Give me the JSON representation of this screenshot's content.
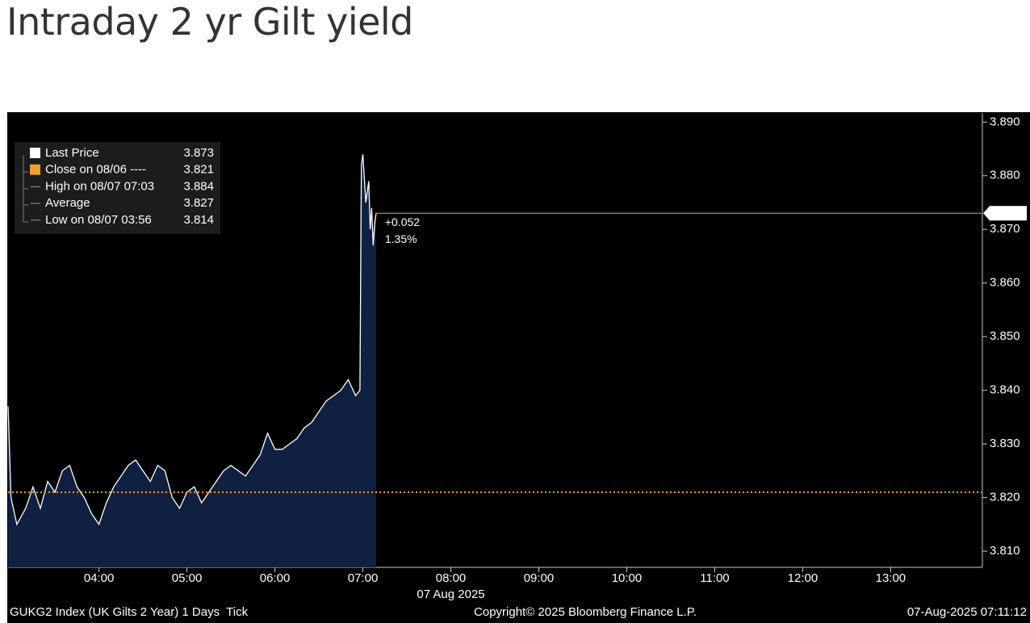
{
  "title": "Intraday 2 yr Gilt yield",
  "chart_data": {
    "type": "line",
    "x": [
      178,
      180,
      184,
      190,
      195,
      200,
      205,
      210,
      215,
      220,
      225,
      230,
      235,
      240,
      245,
      250,
      255,
      260,
      265,
      270,
      275,
      280,
      285,
      290,
      295,
      300,
      305,
      310,
      315,
      320,
      325,
      330,
      335,
      340,
      345,
      350,
      355,
      360,
      365,
      370,
      375,
      380,
      385,
      390,
      395,
      400,
      405,
      410,
      415,
      418,
      419,
      420,
      422,
      424,
      425,
      426,
      427,
      428,
      429
    ],
    "series": [
      {
        "name": "Last Price",
        "color": "#ffffff",
        "area_color": "#0f2040",
        "values": [
          3.837,
          3.82,
          3.815,
          3.818,
          3.822,
          3.818,
          3.823,
          3.821,
          3.825,
          3.826,
          3.822,
          3.82,
          3.817,
          3.815,
          3.819,
          3.822,
          3.824,
          3.826,
          3.827,
          3.825,
          3.823,
          3.826,
          3.825,
          3.82,
          3.818,
          3.821,
          3.822,
          3.819,
          3.821,
          3.823,
          3.825,
          3.826,
          3.825,
          3.824,
          3.826,
          3.828,
          3.832,
          3.829,
          3.829,
          3.83,
          3.831,
          3.833,
          3.834,
          3.836,
          3.838,
          3.839,
          3.84,
          3.842,
          3.839,
          3.84,
          3.882,
          3.884,
          3.875,
          3.879,
          3.87,
          3.874,
          3.867,
          3.871,
          3.873
        ]
      }
    ],
    "xlim": [
      178,
      842
    ],
    "xticks": [
      {
        "value": 240,
        "label": "04:00"
      },
      {
        "value": 300,
        "label": "05:00"
      },
      {
        "value": 360,
        "label": "06:00"
      },
      {
        "value": 420,
        "label": "07:00"
      },
      {
        "value": 480,
        "label": "08:00"
      },
      {
        "value": 540,
        "label": "09:00"
      },
      {
        "value": 600,
        "label": "10:00"
      },
      {
        "value": 660,
        "label": "11:00"
      },
      {
        "value": 720,
        "label": "12:00"
      },
      {
        "value": 780,
        "label": "13:00"
      }
    ],
    "x_sublabel": "07 Aug 2025",
    "ylim": [
      3.807,
      3.8917
    ],
    "yticks": [
      {
        "value": 3.81,
        "label": "3.810"
      },
      {
        "value": 3.82,
        "label": "3.820"
      },
      {
        "value": 3.83,
        "label": "3.830"
      },
      {
        "value": 3.84,
        "label": "3.840"
      },
      {
        "value": 3.85,
        "label": "3.850"
      },
      {
        "value": 3.86,
        "label": "3.860"
      },
      {
        "value": 3.87,
        "label": "3.870"
      },
      {
        "value": 3.88,
        "label": "3.880"
      },
      {
        "value": 3.89,
        "label": "3.890"
      }
    ],
    "legend": [
      {
        "label": "Last Price",
        "value": 3.873,
        "color": "#ffffff"
      },
      {
        "label": "Close on 08/06 ----",
        "value": 3.821,
        "color": "#f0a030"
      },
      {
        "label": "High on 08/07 07:03",
        "value": 3.884
      },
      {
        "label": "Average",
        "value": 3.827
      },
      {
        "label": "Low on 08/07 03:56",
        "value": 3.814
      }
    ],
    "change": "+0.052",
    "change_pct": "1.35%",
    "footer_left": "GUKG2 Index (UK Gilts 2 Year) 1 Days  Tick",
    "footer_center": "Copyright© 2025 Bloomberg Finance L.P.",
    "footer_right": "07-Aug-2025 07:11:12"
  }
}
